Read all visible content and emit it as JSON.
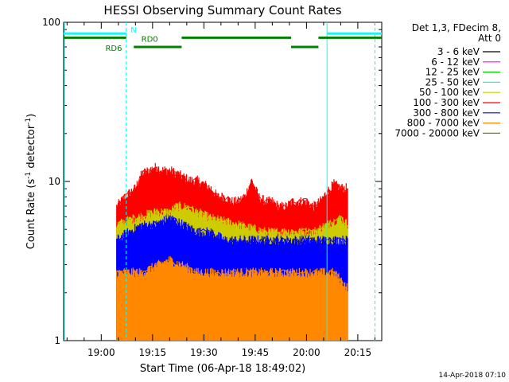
{
  "chart_data": {
    "type": "line",
    "title": "HESSI Observing Summary Count Rates",
    "xlabel": "Start Time (06-Apr-18 18:49:02)",
    "ylabel_main": "Count Rate (s",
    "ylabel_sup1": "-1",
    "ylabel_mid": " detector",
    "ylabel_sup2": "-1",
    "ylabel_end": ")",
    "y_scale": "log",
    "ylim": [
      1,
      100
    ],
    "y_ticks": [
      {
        "value": 1,
        "label": "1"
      },
      {
        "value": 10,
        "label": "10"
      },
      {
        "value": 100,
        "label": "100"
      }
    ],
    "xlim_minutes": [
      -11,
      82
    ],
    "x_ticks": [
      {
        "value": 0,
        "label": "19:00"
      },
      {
        "value": 15,
        "label": "19:15"
      },
      {
        "value": 30,
        "label": "19:30"
      },
      {
        "value": 45,
        "label": "19:45"
      },
      {
        "value": 60,
        "label": "20:00"
      },
      {
        "value": 75,
        "label": "20:15"
      }
    ],
    "legend_header": [
      "Det 1,3, FDecim 8,",
      "Att 0"
    ],
    "legend_placement": "right",
    "legend": [
      {
        "label": "3 - 6 keV",
        "color": "#000000"
      },
      {
        "label": "6 - 12 keV",
        "color": "#ff00ff"
      },
      {
        "label": "12 - 25 keV",
        "color": "#00cc00"
      },
      {
        "label": "25 - 50 keV",
        "color": "#00ffff"
      },
      {
        "label": "50 - 100 keV",
        "color": "#cccc00"
      },
      {
        "label": "100 - 300 keV",
        "color": "#ff0000"
      },
      {
        "label": "300 - 800 keV",
        "color": "#0000ff"
      },
      {
        "label": "800 - 7000 keV",
        "color": "#ff8800"
      },
      {
        "label": "7000 - 20000 keV",
        "color": "#808000"
      }
    ],
    "data_window_minutes": [
      4.5,
      72
    ],
    "series": [
      {
        "name": "100 - 300 keV",
        "color": "#ff0000",
        "x": [
          4.5,
          7,
          10,
          12,
          14,
          16,
          18,
          20,
          22,
          24,
          26,
          28,
          30,
          32,
          34,
          36,
          38,
          40,
          42,
          44,
          46,
          48,
          50,
          52,
          54,
          56,
          58,
          60,
          62,
          64,
          66,
          68,
          70,
          72
        ],
        "y": [
          6.5,
          7.5,
          8.5,
          10.5,
          11,
          11.5,
          11,
          11,
          10.5,
          10,
          9.5,
          9.5,
          9,
          8.5,
          7.5,
          7.5,
          7,
          7,
          7.5,
          9.5,
          7.5,
          7,
          7,
          6.5,
          6.5,
          7,
          7,
          7,
          6.5,
          7,
          8,
          9,
          8.5,
          8.5
        ]
      },
      {
        "name": "50 - 100 keV",
        "color": "#cccc00",
        "x": [
          4.5,
          10,
          16,
          20,
          22,
          24,
          28,
          32,
          40,
          48,
          56,
          62,
          66,
          70,
          72
        ],
        "y": [
          5,
          5.5,
          6,
          6,
          6.5,
          6.5,
          6,
          5.5,
          5,
          4.5,
          4.5,
          4.5,
          5,
          5.5,
          5
        ]
      },
      {
        "name": "300 - 800 keV",
        "color": "#0000ff",
        "x": [
          4.5,
          8,
          12,
          16,
          20,
          24,
          28,
          32,
          36,
          40,
          44,
          48,
          52,
          56,
          60,
          64,
          68,
          72
        ],
        "y": [
          4,
          4.5,
          5,
          5,
          5.5,
          5,
          4.5,
          4.5,
          4,
          4,
          4,
          4,
          4,
          4,
          4,
          4,
          4,
          4
        ]
      },
      {
        "name": "800 - 7000 keV",
        "color": "#ff8800",
        "x": [
          4.5,
          12,
          20,
          28,
          36,
          44,
          52,
          60,
          68,
          72
        ],
        "y": [
          2.5,
          2.5,
          3,
          2.5,
          2.5,
          2.5,
          2.5,
          2.5,
          2.5,
          2
        ]
      }
    ],
    "attenuator_bars": [
      {
        "label": "",
        "color": "#00ffff",
        "x0": -11,
        "x1": 7.3,
        "level": 85
      },
      {
        "label": "",
        "color": "#00ffff",
        "x0": 66,
        "x1": 82,
        "level": 85
      }
    ],
    "mode_bars": [
      {
        "color": "#008000",
        "x0": -11,
        "x1": 7.3,
        "level": 80
      },
      {
        "color": "#008000",
        "x0": 9.5,
        "x1": 23.5,
        "level": 70
      },
      {
        "color": "#008000",
        "x0": 23.5,
        "x1": 55.5,
        "level": 80
      },
      {
        "color": "#008000",
        "x0": 55.5,
        "x1": 63.5,
        "level": 70
      },
      {
        "color": "#008000",
        "x0": 63.5,
        "x1": 82,
        "level": 80
      }
    ],
    "vertical_markers": [
      {
        "x": 7.3,
        "style": "dashed",
        "color": "#00ffff"
      },
      {
        "x": 66,
        "style": "solid",
        "color": "#00ffff"
      },
      {
        "x": 80,
        "style": "dashed",
        "color": "#00ffff"
      }
    ],
    "annotations": [
      {
        "text": "N",
        "color": "#00ffff",
        "x": 8.6,
        "y": 90
      },
      {
        "text": "RD0",
        "color": "#008000",
        "x": 11.7,
        "y": 79
      },
      {
        "text": "RD6",
        "color": "#008000",
        "x": 1.2,
        "y": 69
      }
    ]
  },
  "footer": {
    "timestamp": "14-Apr-2018 07:10"
  }
}
